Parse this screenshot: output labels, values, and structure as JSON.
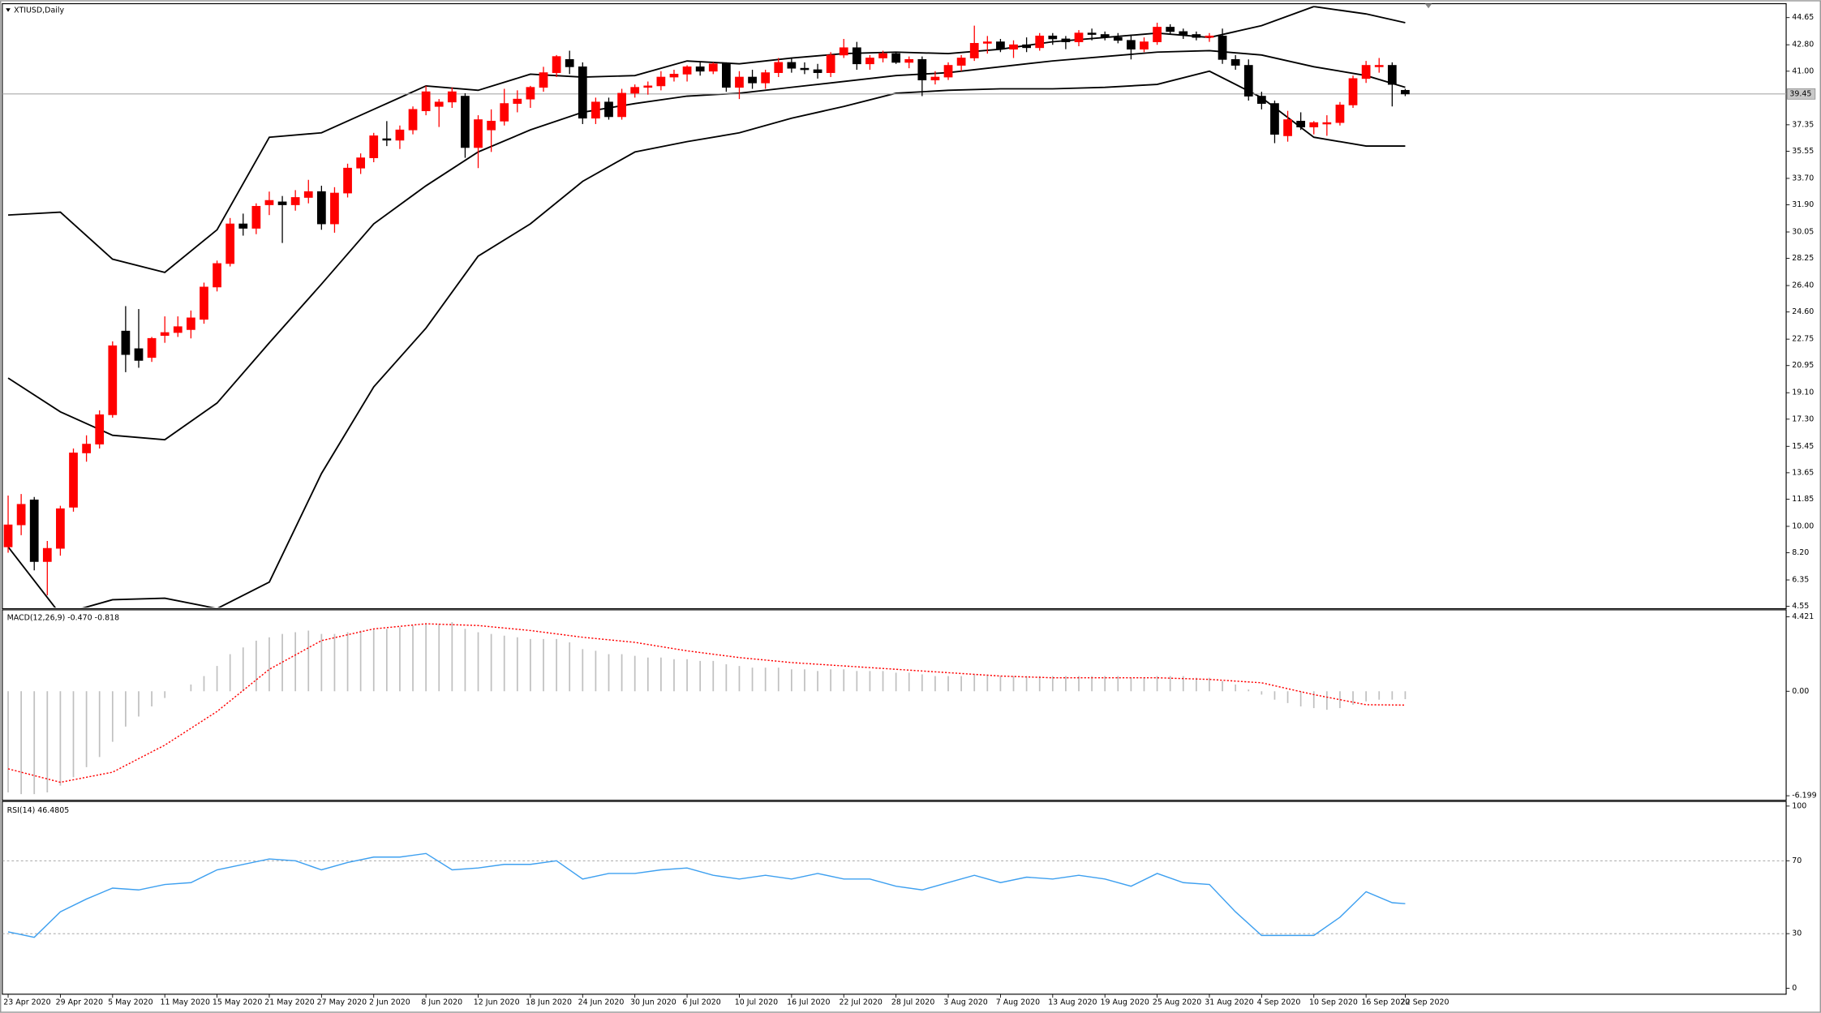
{
  "chart_data": [
    {
      "type": "candlestick",
      "title": "XTIUSD,Daily",
      "ylim": [
        4.47,
        45.44
      ],
      "yticks": [
        44.65,
        {
          "value": 42.8,
          "label": "42.80"
        },
        {
          "value": 41,
          "label": "41.00"
        },
        37.35,
        35.55,
        {
          "value": 33.7,
          "label": "33.70"
        },
        {
          "value": 31.9,
          "label": "31.90"
        },
        30.05,
        28.25,
        {
          "value": 26.4,
          "label": "26.40"
        },
        {
          "value": 24.6,
          "label": "24.60"
        },
        22.75,
        20.95,
        {
          "value": 19.1,
          "label": "19.10"
        },
        {
          "value": 17.3,
          "label": "17.30"
        },
        15.45,
        13.65,
        11.85,
        {
          "value": 10,
          "label": "10.00"
        },
        {
          "value": 8.2,
          "label": "8.20"
        },
        6.35,
        4.55
      ],
      "grid": false,
      "last_price": 39.45,
      "up_color": "#ff0000",
      "down_color": "#000000",
      "candles": [
        [
          8.6,
          12.1,
          8.2,
          10.1
        ],
        [
          10.1,
          12.2,
          9.4,
          11.5
        ],
        [
          11.8,
          12.0,
          7.0,
          7.6
        ],
        [
          7.6,
          9.0,
          5.3,
          8.5
        ],
        [
          8.5,
          11.4,
          8.0,
          11.2
        ],
        [
          11.3,
          15.3,
          11.0,
          15.0
        ],
        [
          15.0,
          16.2,
          14.4,
          15.6
        ],
        [
          15.6,
          17.9,
          15.3,
          17.6
        ],
        [
          17.6,
          22.6,
          17.4,
          22.3
        ],
        [
          23.3,
          25.0,
          20.5,
          21.7
        ],
        [
          22.1,
          24.8,
          20.8,
          21.3
        ],
        [
          21.5,
          22.9,
          21.2,
          22.8
        ],
        [
          23.0,
          24.3,
          22.5,
          23.2
        ],
        [
          23.2,
          24.3,
          22.9,
          23.6
        ],
        [
          23.4,
          24.7,
          22.8,
          24.2
        ],
        [
          24.1,
          26.6,
          23.8,
          26.3
        ],
        [
          26.3,
          28.1,
          26.0,
          27.9
        ],
        [
          27.9,
          31.0,
          27.7,
          30.6
        ],
        [
          30.6,
          31.3,
          29.8,
          30.3
        ],
        [
          30.3,
          32.0,
          29.9,
          31.8
        ],
        [
          31.9,
          32.8,
          31.2,
          32.2
        ],
        [
          32.1,
          32.5,
          29.3,
          31.9
        ],
        [
          31.9,
          32.9,
          31.5,
          32.4
        ],
        [
          32.4,
          33.6,
          32.0,
          32.8
        ],
        [
          32.8,
          33.2,
          30.2,
          30.6
        ],
        [
          30.6,
          33.1,
          30.0,
          32.7
        ],
        [
          32.7,
          34.7,
          32.4,
          34.4
        ],
        [
          34.4,
          35.4,
          34.0,
          35.1
        ],
        [
          35.1,
          36.8,
          34.8,
          36.6
        ],
        [
          36.4,
          37.6,
          35.9,
          36.3
        ],
        [
          36.3,
          37.3,
          35.7,
          37.0
        ],
        [
          37.0,
          38.6,
          36.7,
          38.4
        ],
        [
          38.3,
          40.0,
          38.0,
          39.6
        ],
        [
          38.6,
          39.1,
          37.2,
          38.9
        ],
        [
          38.9,
          39.9,
          38.5,
          39.6
        ],
        [
          39.3,
          39.5,
          35.1,
          35.8
        ],
        [
          35.8,
          38.0,
          34.4,
          37.7
        ],
        [
          37.0,
          38.4,
          35.5,
          37.6
        ],
        [
          37.6,
          39.8,
          37.3,
          38.8
        ],
        [
          38.8,
          39.7,
          38.2,
          39.1
        ],
        [
          39.1,
          40.0,
          38.5,
          39.9
        ],
        [
          39.9,
          41.3,
          39.6,
          40.9
        ],
        [
          40.9,
          42.1,
          40.6,
          42.0
        ],
        [
          41.8,
          42.4,
          40.8,
          41.3
        ],
        [
          41.3,
          41.6,
          37.4,
          37.8
        ],
        [
          37.8,
          39.2,
          37.4,
          38.9
        ],
        [
          38.9,
          39.2,
          37.7,
          37.9
        ],
        [
          37.9,
          39.8,
          37.7,
          39.5
        ],
        [
          39.5,
          40.1,
          39.2,
          39.9
        ],
        [
          39.9,
          40.3,
          39.4,
          40.0
        ],
        [
          40.0,
          41.0,
          39.7,
          40.6
        ],
        [
          40.6,
          41.1,
          40.3,
          40.8
        ],
        [
          40.8,
          41.4,
          40.3,
          41.3
        ],
        [
          41.3,
          41.6,
          40.7,
          41.0
        ],
        [
          41.0,
          41.6,
          40.8,
          41.5
        ],
        [
          41.5,
          41.6,
          39.6,
          39.9
        ],
        [
          39.9,
          41.0,
          39.1,
          40.6
        ],
        [
          40.6,
          41.1,
          39.8,
          40.2
        ],
        [
          40.2,
          41.1,
          39.8,
          40.9
        ],
        [
          40.9,
          41.9,
          40.6,
          41.6
        ],
        [
          41.6,
          41.9,
          40.9,
          41.2
        ],
        [
          41.2,
          41.6,
          40.8,
          41.1
        ],
        [
          41.1,
          41.5,
          40.5,
          40.9
        ],
        [
          40.9,
          42.3,
          40.6,
          42.1
        ],
        [
          42.1,
          43.2,
          41.9,
          42.6
        ],
        [
          42.6,
          43.0,
          41.1,
          41.5
        ],
        [
          41.5,
          42.1,
          41.1,
          41.9
        ],
        [
          41.9,
          42.4,
          41.6,
          42.2
        ],
        [
          42.2,
          42.3,
          41.5,
          41.6
        ],
        [
          41.6,
          42.0,
          41.2,
          41.8
        ],
        [
          41.8,
          42.0,
          39.3,
          40.4
        ],
        [
          40.4,
          41.0,
          40.1,
          40.6
        ],
        [
          40.6,
          41.6,
          40.4,
          41.4
        ],
        [
          41.4,
          42.1,
          41.0,
          41.9
        ],
        [
          41.9,
          44.1,
          41.7,
          42.9
        ],
        [
          42.9,
          43.4,
          42.2,
          43.0
        ],
        [
          43.0,
          43.2,
          42.3,
          42.5
        ],
        [
          42.5,
          43.1,
          41.9,
          42.8
        ],
        [
          42.8,
          43.3,
          42.3,
          42.6
        ],
        [
          42.6,
          43.6,
          42.4,
          43.4
        ],
        [
          43.4,
          43.6,
          42.8,
          43.2
        ],
        [
          43.2,
          43.4,
          42.5,
          43.0
        ],
        [
          43.0,
          43.8,
          42.7,
          43.6
        ],
        [
          43.6,
          43.9,
          43.1,
          43.5
        ],
        [
          43.5,
          43.7,
          43.1,
          43.3
        ],
        [
          43.3,
          43.6,
          42.9,
          43.1
        ],
        [
          43.1,
          43.5,
          41.8,
          42.5
        ],
        [
          42.5,
          43.3,
          42.3,
          43.0
        ],
        [
          43.0,
          44.3,
          42.8,
          44.0
        ],
        [
          44.0,
          44.2,
          43.5,
          43.7
        ],
        [
          43.7,
          43.9,
          43.2,
          43.5
        ],
        [
          43.5,
          43.7,
          43.1,
          43.3
        ],
        [
          43.3,
          43.6,
          43.0,
          43.4
        ],
        [
          43.4,
          43.9,
          41.5,
          41.8
        ],
        [
          41.8,
          42.1,
          41.1,
          41.4
        ],
        [
          41.4,
          41.8,
          39.0,
          39.3
        ],
        [
          39.3,
          39.6,
          38.4,
          38.8
        ],
        [
          38.8,
          39.0,
          36.1,
          36.7
        ],
        [
          36.6,
          38.3,
          36.2,
          37.7
        ],
        [
          37.6,
          38.2,
          37.0,
          37.2
        ],
        [
          37.2,
          37.6,
          36.7,
          37.5
        ],
        [
          37.4,
          38.0,
          36.6,
          37.5
        ],
        [
          37.5,
          38.9,
          37.3,
          38.7
        ],
        [
          38.7,
          40.7,
          38.5,
          40.5
        ],
        [
          40.5,
          41.7,
          40.2,
          41.4
        ],
        [
          41.3,
          41.9,
          40.9,
          41.4
        ],
        [
          41.4,
          41.6,
          38.6,
          40.1
        ],
        [
          39.7,
          39.8,
          39.3,
          39.45
        ]
      ],
      "bands": {
        "color": "#000000",
        "x": [
          0,
          4,
          8,
          12,
          16,
          20,
          24,
          28,
          32,
          36,
          40,
          44,
          48,
          52,
          56,
          60,
          64,
          68,
          72,
          76,
          80,
          84,
          88,
          92,
          96,
          100,
          104,
          107
        ],
        "upper": [
          31.2,
          31.4,
          28.2,
          27.3,
          30.2,
          36.5,
          36.8,
          38.4,
          40.0,
          39.7,
          40.8,
          40.6,
          40.7,
          41.7,
          41.5,
          41.9,
          42.2,
          42.3,
          42.2,
          42.5,
          43.0,
          43.3,
          43.6,
          43.3,
          44.1,
          45.4,
          44.9,
          44.3
        ],
        "middle": [
          20.1,
          17.8,
          16.2,
          15.9,
          18.4,
          22.5,
          26.5,
          30.6,
          33.2,
          35.5,
          37.0,
          38.2,
          38.8,
          39.3,
          39.5,
          39.9,
          40.3,
          40.7,
          40.9,
          41.3,
          41.7,
          42.0,
          42.3,
          42.4,
          42.1,
          41.3,
          40.7,
          39.9
        ],
        "lower": [
          8.6,
          4.0,
          5.0,
          5.1,
          4.4,
          6.2,
          13.6,
          19.5,
          23.5,
          28.4,
          30.6,
          33.5,
          35.5,
          36.2,
          36.8,
          37.8,
          38.6,
          39.5,
          39.7,
          39.8,
          39.8,
          39.9,
          40.1,
          41.0,
          39.2,
          36.5,
          35.9,
          35.9
        ]
      }
    },
    {
      "type": "macd",
      "title": "MACD(12,26,9) -0.470 -0.818",
      "ylim": [
        -6.4,
        4.76
      ],
      "yticks": [
        4.421,
        {
          "value": 0,
          "label": "0.00"
        },
        -6.199
      ],
      "histogram_color": "#c0c0c0",
      "histogram": [
        -6.0,
        -6.1,
        -6.1,
        -6.0,
        -5.6,
        -5.1,
        -4.5,
        -3.9,
        -3.0,
        -2.1,
        -1.5,
        -0.9,
        -0.4,
        0.0,
        0.4,
        0.9,
        1.5,
        2.2,
        2.6,
        3.0,
        3.2,
        3.4,
        3.5,
        3.6,
        3.4,
        3.4,
        3.5,
        3.6,
        3.7,
        3.7,
        3.8,
        3.9,
        4.0,
        4.0,
        4.1,
        3.7,
        3.5,
        3.4,
        3.3,
        3.2,
        3.1,
        3.1,
        3.1,
        2.9,
        2.5,
        2.4,
        2.2,
        2.2,
        2.1,
        2.0,
        2.0,
        1.9,
        1.9,
        1.8,
        1.8,
        1.6,
        1.5,
        1.4,
        1.4,
        1.4,
        1.3,
        1.3,
        1.2,
        1.3,
        1.3,
        1.2,
        1.2,
        1.2,
        1.1,
        1.1,
        1.0,
        0.9,
        0.9,
        0.9,
        1.0,
        1.0,
        0.9,
        0.9,
        0.9,
        0.9,
        0.9,
        0.9,
        0.9,
        0.9,
        0.9,
        0.9,
        0.8,
        0.8,
        0.9,
        0.9,
        0.9,
        0.8,
        0.8,
        0.6,
        0.4,
        0.1,
        -0.2,
        -0.5,
        -0.7,
        -0.9,
        -1.0,
        -1.1,
        -1.0,
        -0.8,
        -0.6,
        -0.5,
        -0.5,
        -0.47
      ],
      "signal": {
        "color": "#ff0000",
        "x": [
          0,
          4,
          8,
          12,
          16,
          20,
          24,
          28,
          32,
          36,
          40,
          44,
          48,
          52,
          56,
          60,
          64,
          68,
          72,
          76,
          80,
          84,
          88,
          92,
          96,
          100,
          104,
          107
        ],
        "values": [
          -4.6,
          -5.4,
          -4.8,
          -3.2,
          -1.2,
          1.3,
          3.0,
          3.7,
          4.0,
          3.9,
          3.6,
          3.2,
          2.9,
          2.4,
          2.0,
          1.7,
          1.5,
          1.3,
          1.1,
          0.9,
          0.8,
          0.8,
          0.8,
          0.7,
          0.5,
          -0.2,
          -0.8,
          -0.818
        ]
      }
    },
    {
      "type": "line",
      "title": "RSI(14) 46.4805",
      "ylim": [
        -2.6,
        101.9
      ],
      "yticks": [
        100,
        70,
        30,
        0
      ],
      "levels": [
        70,
        30
      ],
      "color": "#3ea0f0",
      "x": [
        0,
        2,
        4,
        6,
        8,
        10,
        12,
        14,
        16,
        18,
        20,
        22,
        24,
        26,
        28,
        30,
        32,
        34,
        36,
        38,
        40,
        42,
        44,
        46,
        48,
        50,
        52,
        54,
        56,
        58,
        60,
        62,
        64,
        66,
        68,
        70,
        72,
        74,
        76,
        78,
        80,
        82,
        84,
        86,
        88,
        90,
        92,
        94,
        96,
        98,
        100,
        102,
        104,
        106,
        107
      ],
      "values": [
        31,
        28,
        42,
        49,
        55,
        54,
        57,
        58,
        65,
        68,
        71,
        70,
        65,
        69,
        72,
        72,
        74,
        65,
        66,
        68,
        68,
        70,
        60,
        63,
        63,
        65,
        66,
        62,
        60,
        62,
        60,
        63,
        60,
        60,
        56,
        54,
        58,
        62,
        58,
        61,
        60,
        62,
        60,
        56,
        63,
        58,
        57,
        42,
        29,
        29,
        29,
        39,
        53,
        47,
        46.48
      ],
      "xticks": [
        {
          "value": 0,
          "label": "23 Apr 2020"
        },
        {
          "value": 4,
          "label": "29 Apr 2020"
        },
        {
          "value": 8,
          "label": "5 May 2020"
        },
        {
          "value": 12,
          "label": "11 May 2020"
        },
        {
          "value": 16,
          "label": "15 May 2020"
        },
        {
          "value": 20,
          "label": "21 May 2020"
        },
        {
          "value": 24,
          "label": "27 May 2020"
        },
        {
          "value": 28,
          "label": "2 Jun 2020"
        },
        {
          "value": 32,
          "label": "8 Jun 2020"
        },
        {
          "value": 36,
          "label": "12 Jun 2020"
        },
        {
          "value": 40,
          "label": "18 Jun 2020"
        },
        {
          "value": 44,
          "label": "24 Jun 2020"
        },
        {
          "value": 48,
          "label": "30 Jun 2020"
        },
        {
          "value": 52,
          "label": "6 Jul 2020"
        },
        {
          "value": 56,
          "label": "10 Jul 2020"
        },
        {
          "value": 60,
          "label": "16 Jul 2020"
        },
        {
          "value": 64,
          "label": "22 Jul 2020"
        },
        {
          "value": 68,
          "label": "28 Jul 2020"
        },
        {
          "value": 72,
          "label": "3 Aug 2020"
        },
        {
          "value": 76,
          "label": "7 Aug 2020"
        },
        {
          "value": 80,
          "label": "13 Aug 2020"
        },
        {
          "value": 84,
          "label": "19 Aug 2020"
        },
        {
          "value": 88,
          "label": "25 Aug 2020"
        },
        {
          "value": 92,
          "label": "31 Aug 2020"
        },
        {
          "value": 96,
          "label": "4 Sep 2020"
        },
        {
          "value": 100,
          "label": "10 Sep 2020"
        },
        {
          "value": 104,
          "label": "16 Sep 2020"
        },
        {
          "value": 107,
          "label": "22 Sep 2020"
        }
      ]
    }
  ]
}
